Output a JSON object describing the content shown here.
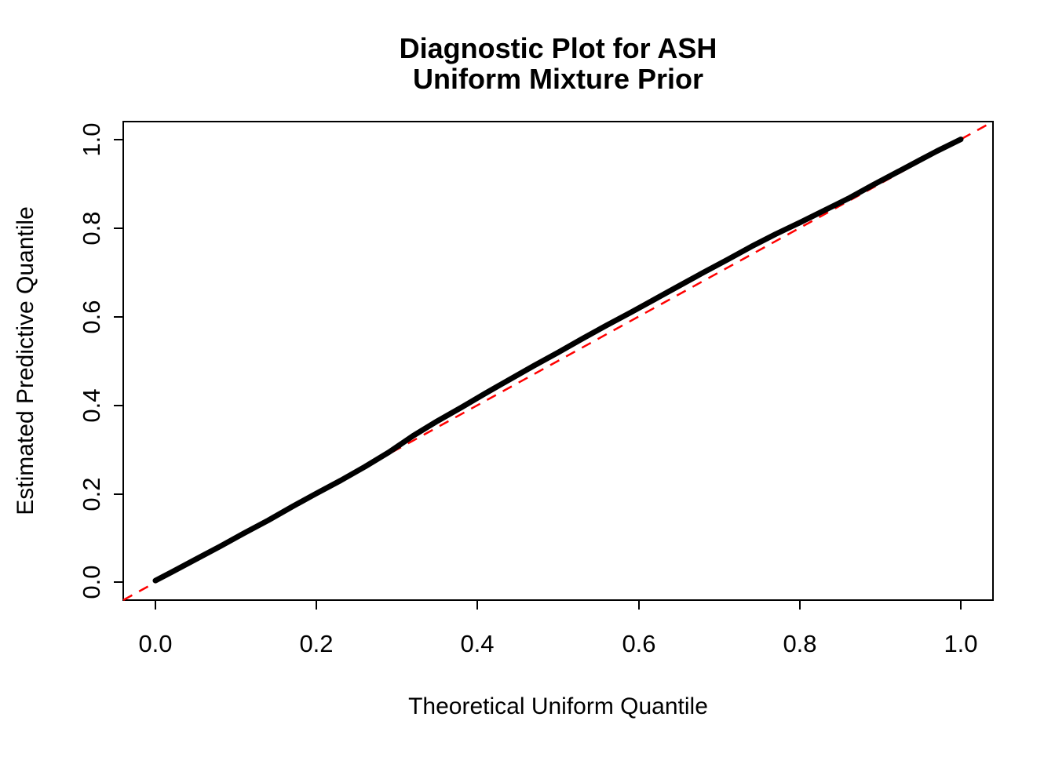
{
  "figure": {
    "background": "#ffffff",
    "frame_color": "#000000"
  },
  "chart_data": {
    "type": "line",
    "title": "Diagnostic Plot for ASH\nUniform Mixture Prior",
    "title_lines": [
      "Diagnostic Plot for ASH",
      "Uniform Mixture Prior"
    ],
    "xlabel": "Theoretical Uniform Quantile",
    "ylabel": "Estimated Predictive Quantile",
    "xlim": [
      -0.04,
      1.04
    ],
    "ylim": [
      -0.04,
      1.04
    ],
    "grid": false,
    "legend": "none",
    "x_ticks": [
      0.0,
      0.2,
      0.4,
      0.6,
      0.8,
      1.0
    ],
    "x_tick_labels": [
      "0.0",
      "0.2",
      "0.4",
      "0.6",
      "0.8",
      "1.0"
    ],
    "y_ticks": [
      0.0,
      0.2,
      0.4,
      0.6,
      0.8,
      1.0
    ],
    "y_tick_labels": [
      "0.0",
      "0.2",
      "0.4",
      "0.6",
      "0.8",
      "1.0"
    ],
    "series": [
      {
        "name": "estimated-predictive-quantile-curve",
        "color": "#000000",
        "style": "thick-point-line",
        "line_width": 7,
        "x": [
          0.0,
          0.02,
          0.05,
          0.08,
          0.11,
          0.14,
          0.17,
          0.2,
          0.23,
          0.26,
          0.29,
          0.32,
          0.35,
          0.38,
          0.41,
          0.44,
          0.47,
          0.5,
          0.53,
          0.56,
          0.59,
          0.62,
          0.65,
          0.68,
          0.71,
          0.74,
          0.77,
          0.8,
          0.83,
          0.86,
          0.89,
          0.92,
          0.95,
          0.97,
          1.0
        ],
        "y": [
          0.004,
          0.023,
          0.052,
          0.081,
          0.111,
          0.14,
          0.171,
          0.201,
          0.23,
          0.261,
          0.294,
          0.331,
          0.364,
          0.395,
          0.427,
          0.458,
          0.489,
          0.519,
          0.55,
          0.58,
          0.609,
          0.639,
          0.669,
          0.699,
          0.728,
          0.758,
          0.786,
          0.812,
          0.839,
          0.866,
          0.896,
          0.925,
          0.954,
          0.973,
          1.0
        ]
      }
    ],
    "ref_line": {
      "name": "identity-line",
      "color": "#FF0000",
      "style": "dashed",
      "slope": 1,
      "intercept": 0,
      "line_width": 2.5,
      "dash": "13 10"
    }
  }
}
